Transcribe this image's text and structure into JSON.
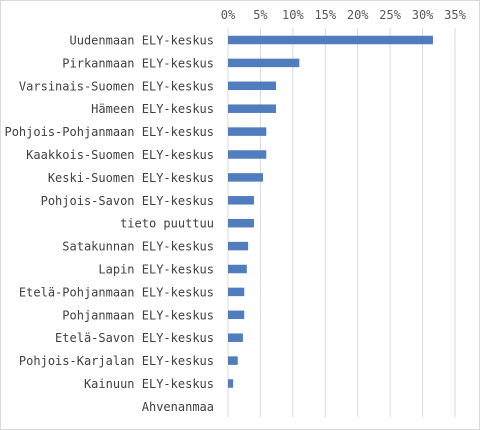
{
  "chart_data": {
    "type": "bar",
    "orientation": "horizontal",
    "categories": [
      "Uudenmaan ELY-keskus",
      "Pirkanmaan ELY-keskus",
      "Varsinais-Suomen ELY-keskus",
      "Hämeen ELY-keskus",
      "Pohjois-Pohjanmaan ELY-keskus",
      "Kaakkois-Suomen ELY-keskus",
      "Keski-Suomen ELY-keskus",
      "Pohjois-Savon ELY-keskus",
      "tieto puuttuu",
      "Satakunnan ELY-keskus",
      "Lapin ELY-keskus",
      "Etelä-Pohjanmaan ELY-keskus",
      "Pohjanmaan ELY-keskus",
      "Etelä-Savon ELY-keskus",
      "Pohjois-Karjalan ELY-keskus",
      "Kainuun ELY-keskus",
      "Ahvenanmaa"
    ],
    "values": [
      31.6,
      11.0,
      7.4,
      7.4,
      5.9,
      5.9,
      5.4,
      4.0,
      4.0,
      3.1,
      2.9,
      2.5,
      2.5,
      2.3,
      1.5,
      0.8,
      0.0
    ],
    "title": "",
    "xlabel": "",
    "ylabel": "",
    "xlim": [
      0,
      35
    ],
    "xticks": [
      "0%",
      "5%",
      "10%",
      "15%",
      "20%",
      "25%",
      "30%",
      "35%"
    ],
    "axis_position": "top",
    "grid": "vertical",
    "legend": "none",
    "bar_color": "#4f7dbd",
    "grid_color": "#d9d9d9"
  }
}
